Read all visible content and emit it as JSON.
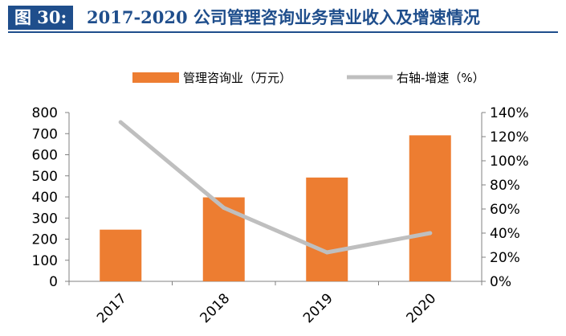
{
  "header": {
    "tag": "图 30:",
    "title": "2017-2020 公司管理咨询业务营业收入及增速情况"
  },
  "colors": {
    "header_tag_bg": "#1f4e8c",
    "header_text": "#1f4e8c",
    "bar": "#ed7d31",
    "line": "#bfbfbf",
    "axis": "#808080",
    "text": "#000000"
  },
  "chart_data": {
    "type": "bar",
    "categories": [
      "2017",
      "2018",
      "2019",
      "2020"
    ],
    "series": [
      {
        "name": "管理咨询业（万元）",
        "type": "bar",
        "axis": "left",
        "values": [
          245,
          398,
          492,
          692
        ]
      },
      {
        "name": "右轴-增速（%）",
        "type": "line",
        "axis": "right",
        "values": [
          132,
          61,
          24,
          40
        ]
      }
    ],
    "ylim": [
      0,
      800
    ],
    "yticks": [
      "0",
      "100",
      "200",
      "300",
      "400",
      "500",
      "600",
      "700",
      "800"
    ],
    "y2lim": [
      0,
      140
    ],
    "y2ticks": [
      "0%",
      "20%",
      "40%",
      "60%",
      "80%",
      "100%",
      "120%",
      "140%"
    ],
    "legend": "top-center",
    "grid": false
  }
}
